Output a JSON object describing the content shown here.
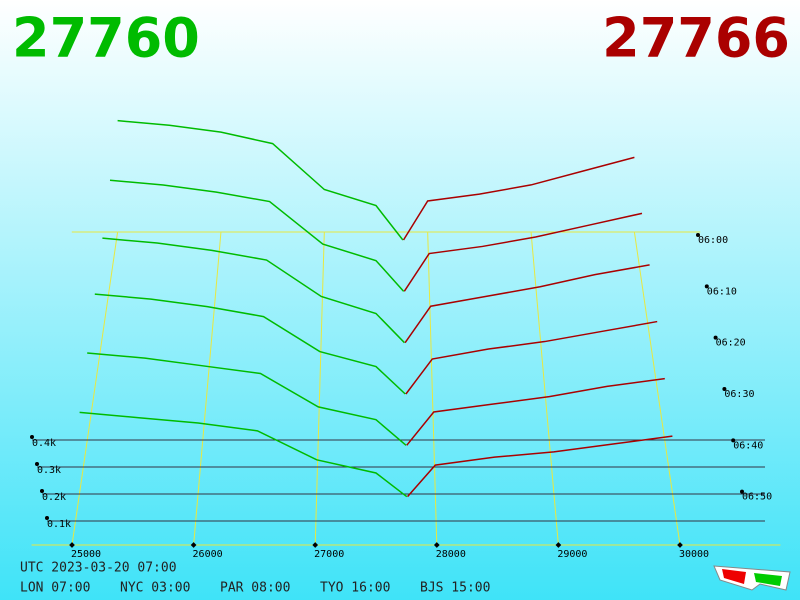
{
  "chart_data": {
    "type": "depth3d",
    "bid_price": 27760,
    "ask_price": 27766,
    "bid_color": "#00bb00",
    "ask_color": "#aa0000",
    "xticks": [
      25000,
      26000,
      27000,
      28000,
      29000,
      30000
    ],
    "xlim": [
      24750,
      30250
    ],
    "depth_ticks": [
      {
        "value": 100,
        "label": "0.1k"
      },
      {
        "value": 200,
        "label": "0.2k"
      },
      {
        "value": 300,
        "label": "0.3k"
      },
      {
        "value": 400,
        "label": "0.4k"
      }
    ],
    "time_ticks": [
      "06:00",
      "06:10",
      "06:20",
      "06:30",
      "06:40",
      "06:50"
    ],
    "bid_prices": [
      25000,
      25500,
      26000,
      26500,
      27000,
      27500,
      27760
    ],
    "ask_prices": [
      27766,
      28000,
      28500,
      29000,
      29500,
      30000
    ],
    "snapshots": [
      {
        "bids": [
          520,
          500,
          470,
          420,
          220,
          150,
          0
        ],
        "asks": [
          0,
          170,
          200,
          240,
          300,
          360
        ]
      },
      {
        "bids": [
          470,
          450,
          420,
          380,
          200,
          130,
          0
        ],
        "asks": [
          0,
          160,
          190,
          230,
          280,
          330
        ]
      },
      {
        "bids": [
          430,
          410,
          380,
          340,
          190,
          120,
          0
        ],
        "asks": [
          0,
          150,
          190,
          230,
          280,
          320
        ]
      },
      {
        "bids": [
          400,
          380,
          350,
          310,
          170,
          110,
          0
        ],
        "asks": [
          0,
          140,
          180,
          210,
          250,
          290
        ]
      },
      {
        "bids": [
          360,
          340,
          310,
          280,
          150,
          100,
          0
        ],
        "asks": [
          0,
          130,
          160,
          190,
          230,
          260
        ]
      },
      {
        "bids": [
          320,
          300,
          280,
          250,
          140,
          90,
          0
        ],
        "asks": [
          0,
          120,
          150,
          170,
          200,
          230
        ]
      }
    ],
    "footer": {
      "utc": "UTC 2023-03-20 07:00",
      "cities": [
        "LON 07:00",
        "NYC 03:00",
        "PAR 08:00",
        "TYO 16:00",
        "BJS 15:00"
      ]
    }
  }
}
